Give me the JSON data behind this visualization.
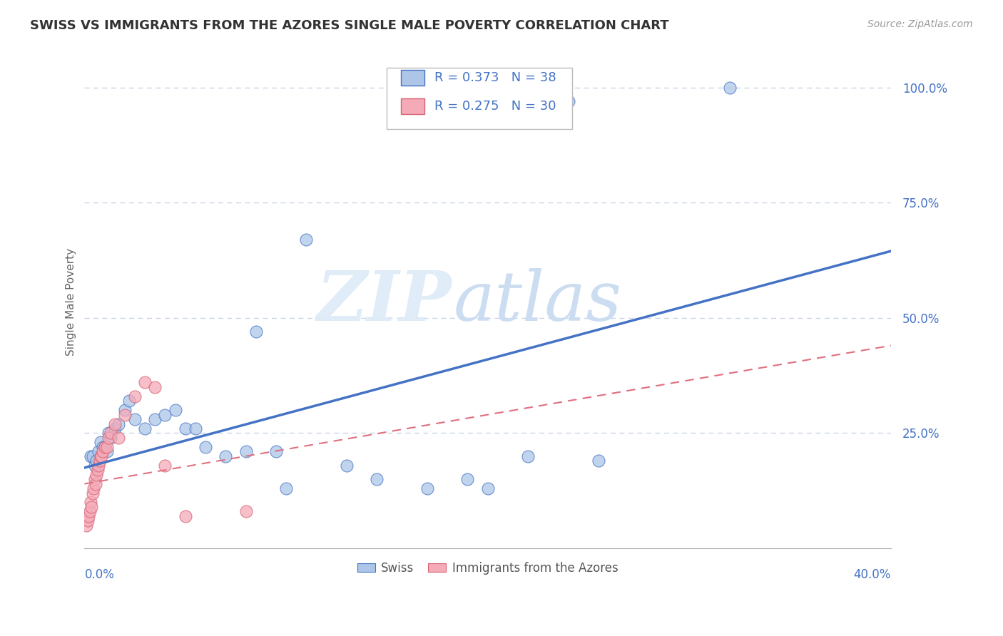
{
  "title": "SWISS VS IMMIGRANTS FROM THE AZORES SINGLE MALE POVERTY CORRELATION CHART",
  "source": "Source: ZipAtlas.com",
  "ylabel": "Single Male Poverty",
  "swiss_r": 0.373,
  "swiss_n": 38,
  "azores_r": 0.275,
  "azores_n": 30,
  "swiss_color": "#adc6e8",
  "azores_color": "#f5aab8",
  "swiss_line_color": "#4472c4",
  "azores_line_color": "#e07080",
  "swiss_edge_color": "#4472c4",
  "azores_edge_color": "#d46070",
  "swiss_scatter": [
    [
      0.3,
      0.2
    ],
    [
      0.4,
      0.2
    ],
    [
      0.5,
      0.18
    ],
    [
      0.6,
      0.19
    ],
    [
      0.7,
      0.21
    ],
    [
      0.8,
      0.23
    ],
    [
      0.9,
      0.22
    ],
    [
      1.0,
      0.22
    ],
    [
      1.1,
      0.21
    ],
    [
      1.2,
      0.25
    ],
    [
      1.3,
      0.24
    ],
    [
      1.5,
      0.26
    ],
    [
      1.7,
      0.27
    ],
    [
      2.0,
      0.3
    ],
    [
      2.2,
      0.32
    ],
    [
      2.5,
      0.28
    ],
    [
      3.0,
      0.26
    ],
    [
      3.5,
      0.28
    ],
    [
      4.0,
      0.29
    ],
    [
      4.5,
      0.3
    ],
    [
      5.0,
      0.26
    ],
    [
      5.5,
      0.26
    ],
    [
      6.0,
      0.22
    ],
    [
      7.0,
      0.2
    ],
    [
      8.0,
      0.21
    ],
    [
      9.5,
      0.21
    ],
    [
      10.0,
      0.13
    ],
    [
      13.0,
      0.18
    ],
    [
      14.5,
      0.15
    ],
    [
      17.0,
      0.13
    ],
    [
      19.0,
      0.15
    ],
    [
      20.0,
      0.13
    ],
    [
      8.5,
      0.47
    ],
    [
      11.0,
      0.67
    ],
    [
      22.0,
      0.2
    ],
    [
      25.5,
      0.19
    ],
    [
      32.0,
      1.0
    ],
    [
      24.0,
      0.97
    ]
  ],
  "azores_scatter": [
    [
      0.1,
      0.05
    ],
    [
      0.15,
      0.06
    ],
    [
      0.2,
      0.07
    ],
    [
      0.25,
      0.08
    ],
    [
      0.3,
      0.1
    ],
    [
      0.35,
      0.09
    ],
    [
      0.4,
      0.12
    ],
    [
      0.45,
      0.13
    ],
    [
      0.5,
      0.15
    ],
    [
      0.55,
      0.14
    ],
    [
      0.6,
      0.16
    ],
    [
      0.65,
      0.17
    ],
    [
      0.7,
      0.18
    ],
    [
      0.75,
      0.19
    ],
    [
      0.8,
      0.2
    ],
    [
      0.85,
      0.2
    ],
    [
      0.9,
      0.21
    ],
    [
      1.0,
      0.22
    ],
    [
      1.1,
      0.22
    ],
    [
      1.2,
      0.24
    ],
    [
      1.3,
      0.25
    ],
    [
      1.5,
      0.27
    ],
    [
      1.7,
      0.24
    ],
    [
      2.0,
      0.29
    ],
    [
      2.5,
      0.33
    ],
    [
      3.0,
      0.36
    ],
    [
      3.5,
      0.35
    ],
    [
      4.0,
      0.18
    ],
    [
      5.0,
      0.07
    ],
    [
      8.0,
      0.08
    ]
  ],
  "watermark_zip": "ZIP",
  "watermark_atlas": "atlas",
  "background_color": "#ffffff",
  "grid_color": "#c8d4e8",
  "xlim": [
    0.0,
    40.0
  ],
  "ylim": [
    0.0,
    1.07
  ],
  "y_tick_positions": [
    0.25,
    0.5,
    0.75,
    1.0
  ],
  "y_tick_labels": [
    "25.0%",
    "50.0%",
    "75.0%",
    "100.0%"
  ]
}
